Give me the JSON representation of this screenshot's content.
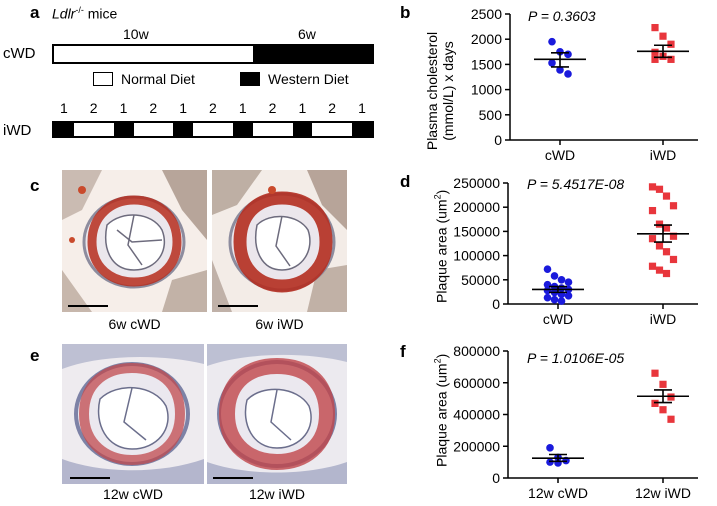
{
  "figure": {
    "panel_a": {
      "label": "a",
      "mouse_italic": "Ldlr",
      "mouse_sup": "-/-",
      "mouse_suffix": " mice",
      "cwd_label": "cWD",
      "iwd_label": "iWD",
      "cwd_phase1": "10w",
      "cwd_phase2": "6w",
      "legend_normal": "Normal Diet",
      "legend_western": "Western Diet",
      "iwd_week_labels": [
        "1",
        "2",
        "1",
        "2",
        "1",
        "2",
        "1",
        "2",
        "1",
        "2",
        "1"
      ]
    },
    "panel_c": {
      "label": "c",
      "captions": [
        "6w cWD",
        "6w iWD"
      ]
    },
    "panel_e": {
      "label": "e",
      "captions": [
        "12w cWD",
        "12w iWD"
      ]
    },
    "panel_b": {
      "label": "b",
      "pvalue": "P = 0.3603",
      "ylabel_line1": "Plasma cholesterol",
      "ylabel_line2": "(mmol/L)  x days"
    },
    "panel_d": {
      "label": "d",
      "pvalue": "P = 5.4517E-08",
      "ylabel_prefix": "Plaque area (um",
      "ylabel_sup": "2",
      "ylabel_suffix": ")"
    },
    "panel_f": {
      "label": "f",
      "pvalue": "P = 1.0106E-05",
      "ylabel_prefix": "Plaque area (um",
      "ylabel_sup": "2",
      "ylabel_suffix": ")"
    }
  },
  "chart_data": [
    {
      "id": "b",
      "type": "scatter",
      "categories": [
        "cWD",
        "iWD"
      ],
      "ylim": [
        0,
        2500
      ],
      "yticks": [
        0,
        500,
        1000,
        1500,
        2000,
        2500
      ],
      "series": [
        {
          "name": "cWD",
          "color": "#1a1adc",
          "marker": "circle",
          "values": [
            1950,
            1750,
            1700,
            1530,
            1390,
            1310
          ],
          "mean": 1600,
          "sem_low": 1450,
          "sem_high": 1730
        },
        {
          "name": "iWD",
          "color": "#e8363c",
          "marker": "square",
          "values": [
            2230,
            2060,
            1900,
            1740,
            1660,
            1600,
            1600
          ],
          "mean": 1760,
          "sem_low": 1640,
          "sem_high": 1880
        }
      ]
    },
    {
      "id": "d",
      "type": "scatter",
      "categories": [
        "cWD",
        "iWD"
      ],
      "ylim": [
        0,
        250000
      ],
      "yticks": [
        0,
        50000,
        100000,
        150000,
        200000,
        250000
      ],
      "series": [
        {
          "name": "cWD",
          "color": "#1a1adc",
          "marker": "circle",
          "values": [
            72000,
            58000,
            50000,
            45000,
            40000,
            36000,
            33000,
            30000,
            28000,
            24000,
            20000,
            17000,
            13000,
            9000,
            6000
          ],
          "mean": 30000,
          "sem_low": 24000,
          "sem_high": 36000
        },
        {
          "name": "iWD",
          "color": "#e8363c",
          "marker": "square",
          "values": [
            242000,
            237000,
            223000,
            203000,
            193000,
            165000,
            157000,
            140000,
            135000,
            120000,
            108000,
            92000,
            78000,
            70000,
            63000
          ],
          "mean": 145000,
          "sem_low": 128000,
          "sem_high": 163000
        }
      ]
    },
    {
      "id": "f",
      "type": "scatter",
      "categories": [
        "12w cWD",
        "12w iWD"
      ],
      "ylim": [
        0,
        800000
      ],
      "yticks": [
        0,
        200000,
        400000,
        600000,
        800000
      ],
      "series": [
        {
          "name": "12w cWD",
          "color": "#1a1adc",
          "marker": "circle",
          "values": [
            190000,
            130000,
            110000,
            100000,
            95000
          ],
          "mean": 125000,
          "sem_low": 105000,
          "sem_high": 148000
        },
        {
          "name": "12w iWD",
          "color": "#e8363c",
          "marker": "square",
          "values": [
            660000,
            590000,
            510000,
            470000,
            430000,
            370000
          ],
          "mean": 515000,
          "sem_low": 475000,
          "sem_high": 555000
        }
      ]
    }
  ]
}
